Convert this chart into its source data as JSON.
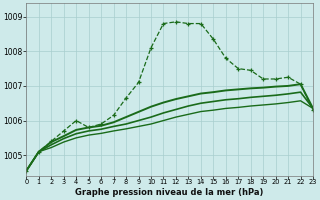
{
  "title": "Graphe pression niveau de la mer (hPa)",
  "bg": "#ceeaea",
  "grid_color": "#a8cece",
  "line_color": "#1a6b1a",
  "xlim": [
    0,
    23
  ],
  "ylim": [
    1004.4,
    1009.4
  ],
  "yticks": [
    1005,
    1006,
    1007,
    1008,
    1009
  ],
  "xticks": [
    0,
    1,
    2,
    3,
    4,
    5,
    6,
    7,
    8,
    9,
    10,
    11,
    12,
    13,
    14,
    15,
    16,
    17,
    18,
    19,
    20,
    21,
    22,
    23
  ],
  "series": [
    {
      "x": [
        0,
        1,
        2,
        3,
        4,
        5,
        6,
        7,
        8,
        9,
        10,
        11,
        12,
        13,
        14,
        15,
        16,
        17,
        18,
        19,
        20,
        21,
        22,
        23
      ],
      "y": [
        1004.55,
        1005.1,
        1005.4,
        1005.7,
        1006.0,
        1005.8,
        1005.9,
        1006.15,
        1006.65,
        1007.1,
        1008.1,
        1008.8,
        1008.85,
        1008.8,
        1008.8,
        1008.35,
        1007.8,
        1007.5,
        1007.45,
        1007.2,
        1007.2,
        1007.25,
        1007.05,
        1006.3
      ],
      "marker": "+",
      "linestyle": "--",
      "lw": 0.9,
      "ms": 3.5
    },
    {
      "x": [
        0,
        1,
        2,
        3,
        4,
        5,
        6,
        7,
        8,
        9,
        10,
        11,
        12,
        13,
        14,
        15,
        16,
        17,
        18,
        19,
        20,
        21,
        22,
        23
      ],
      "y": [
        1004.55,
        1005.1,
        1005.38,
        1005.55,
        1005.73,
        1005.8,
        1005.85,
        1005.95,
        1006.1,
        1006.25,
        1006.4,
        1006.52,
        1006.62,
        1006.7,
        1006.78,
        1006.82,
        1006.87,
        1006.9,
        1006.93,
        1006.95,
        1006.98,
        1007.0,
        1007.05,
        1006.35
      ],
      "marker": null,
      "linestyle": "-",
      "lw": 1.4,
      "ms": 0
    },
    {
      "x": [
        0,
        1,
        2,
        3,
        4,
        5,
        6,
        7,
        8,
        9,
        10,
        11,
        12,
        13,
        14,
        15,
        16,
        17,
        18,
        19,
        20,
        21,
        22,
        23
      ],
      "y": [
        1004.55,
        1005.1,
        1005.3,
        1005.48,
        1005.62,
        1005.7,
        1005.75,
        1005.83,
        1005.9,
        1006.0,
        1006.1,
        1006.22,
        1006.32,
        1006.42,
        1006.5,
        1006.55,
        1006.6,
        1006.63,
        1006.67,
        1006.7,
        1006.73,
        1006.77,
        1006.82,
        1006.35
      ],
      "marker": null,
      "linestyle": "-",
      "lw": 1.2,
      "ms": 0
    },
    {
      "x": [
        0,
        1,
        2,
        3,
        4,
        5,
        6,
        7,
        8,
        9,
        10,
        11,
        12,
        13,
        14,
        15,
        16,
        17,
        18,
        19,
        20,
        21,
        22,
        23
      ],
      "y": [
        1004.55,
        1005.1,
        1005.22,
        1005.38,
        1005.5,
        1005.58,
        1005.63,
        1005.7,
        1005.76,
        1005.83,
        1005.9,
        1006.0,
        1006.1,
        1006.18,
        1006.26,
        1006.3,
        1006.35,
        1006.38,
        1006.42,
        1006.45,
        1006.48,
        1006.52,
        1006.57,
        1006.35
      ],
      "marker": null,
      "linestyle": "-",
      "lw": 1.0,
      "ms": 0
    }
  ]
}
